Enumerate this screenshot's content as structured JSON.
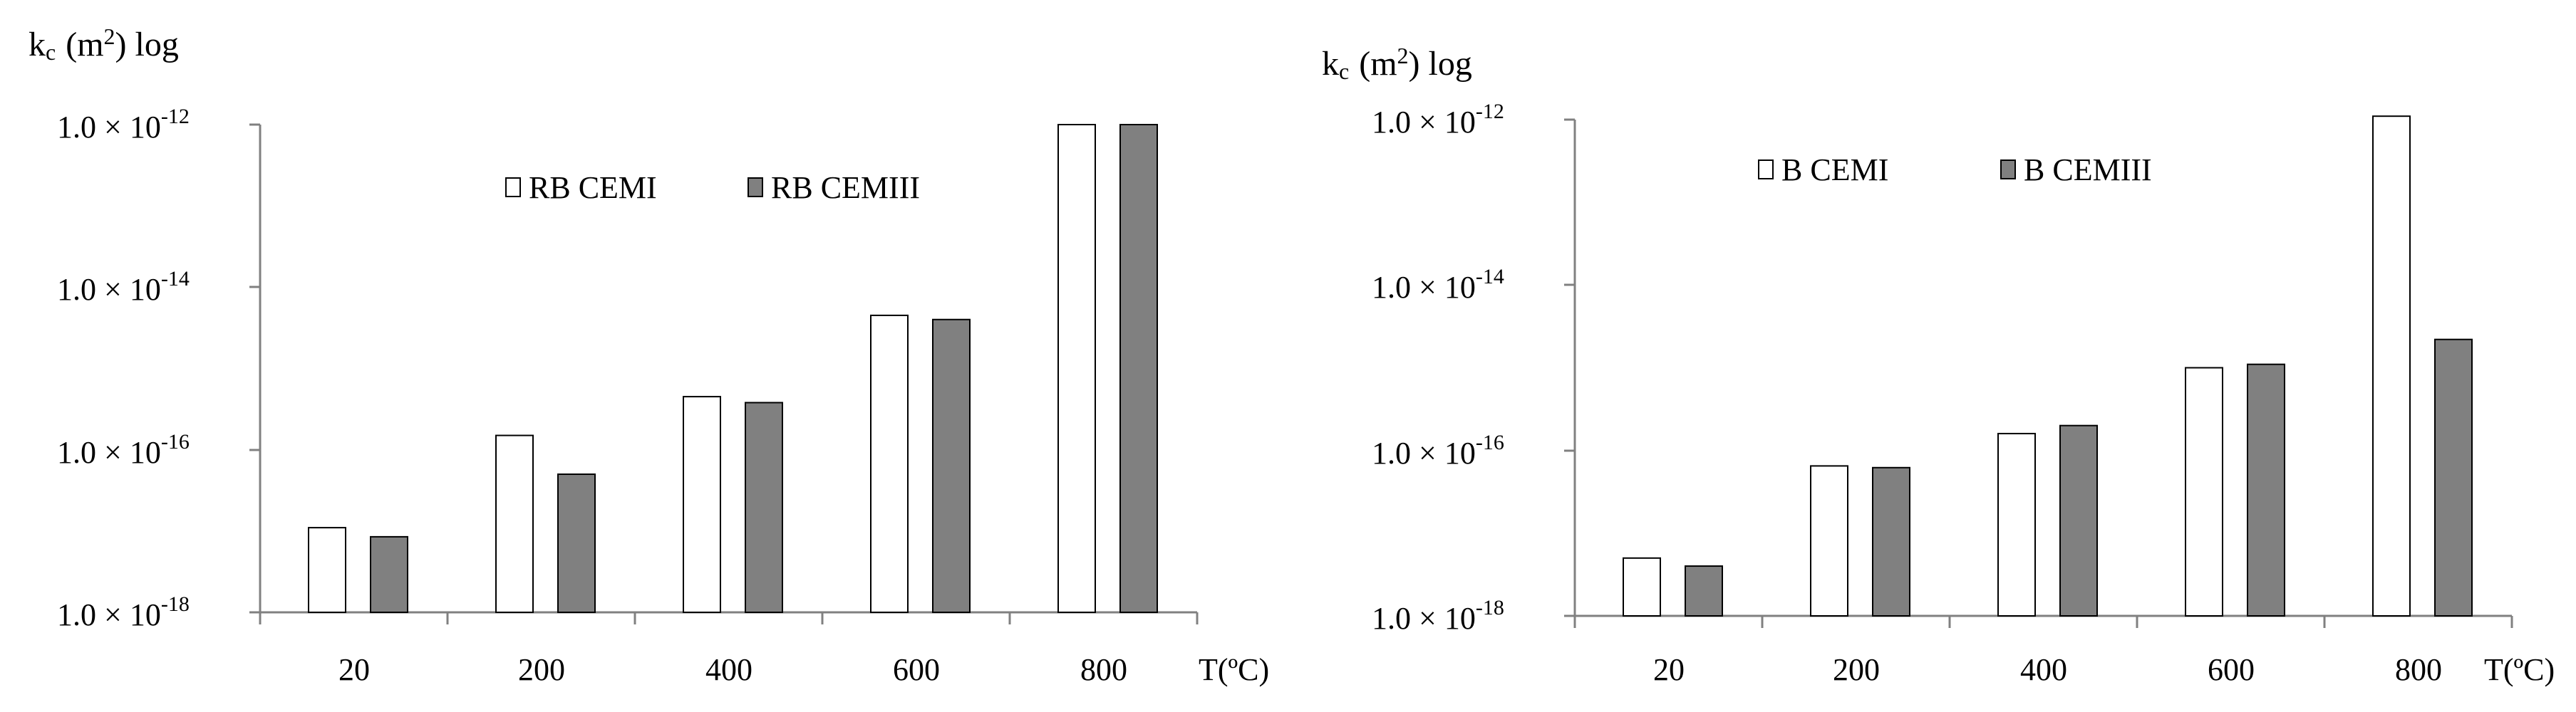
{
  "chart_data": [
    {
      "type": "bar",
      "ylabel": "kc (m2) log",
      "ylabel_parts": {
        "k": "k",
        "sub": "c",
        "paren_open": "(m",
        "sup": "2",
        "paren_close": ") log"
      },
      "xlabel": "T(ºC)",
      "yscale": "log",
      "ylim": [
        1e-18,
        1e-12
      ],
      "yticks": [
        {
          "base": "1.0 × 10",
          "exp": "-18"
        },
        {
          "base": "1.0 × 10",
          "exp": "-16"
        },
        {
          "base": "1.0 × 10",
          "exp": "-14"
        },
        {
          "base": "1.0 × 10",
          "exp": "-12"
        }
      ],
      "categories": [
        "20",
        "200",
        "400",
        "600",
        "800"
      ],
      "legend_position": "top-center",
      "series": [
        {
          "name": "RB CEMI",
          "color": "#ffffff",
          "values": [
            1.1e-17,
            1.5e-16,
            4.5e-16,
            4.5e-15,
            1e-12
          ]
        },
        {
          "name": "RB CEMIII",
          "color": "#808080",
          "values": [
            8.5e-18,
            5e-17,
            3.8e-16,
            4e-15,
            1e-12
          ]
        }
      ]
    },
    {
      "type": "bar",
      "ylabel": "kc (m2) log",
      "ylabel_parts": {
        "k": "k",
        "sub": "c",
        "paren_open": "(m",
        "sup": "2",
        "paren_close": ") log"
      },
      "xlabel": "T(ºC)",
      "yscale": "log",
      "ylim": [
        1e-18,
        1e-12
      ],
      "yticks": [
        {
          "base": "1.0 × 10",
          "exp": "-18"
        },
        {
          "base": "1.0 × 10",
          "exp": "-16"
        },
        {
          "base": "1.0 × 10",
          "exp": "-14"
        },
        {
          "base": "1.0 × 10",
          "exp": "-12"
        }
      ],
      "categories": [
        "20",
        "200",
        "400",
        "600",
        "800"
      ],
      "legend_position": "top-center",
      "series": [
        {
          "name": "B CEMI",
          "color": "#ffffff",
          "values": [
            5e-18,
            6.5e-17,
            1.6e-16,
            1e-15,
            1.1e-12
          ]
        },
        {
          "name": "B CEMIII",
          "color": "#808080",
          "values": [
            4e-18,
            6.2e-17,
            2e-16,
            1.1e-15,
            2.2e-15
          ]
        }
      ]
    }
  ]
}
